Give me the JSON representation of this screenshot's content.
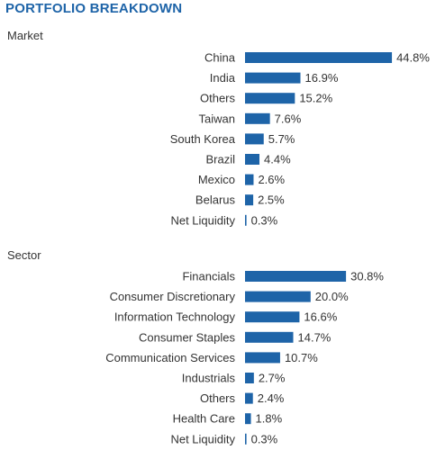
{
  "title": "PORTFOLIO BREAKDOWN",
  "colors": {
    "title": "#1e64a8",
    "bar": "#1e64a8",
    "text": "#333333"
  },
  "chart_data": [
    {
      "type": "bar",
      "orientation": "horizontal",
      "title": "Market",
      "unit": "%",
      "categories": [
        "China",
        "India",
        "Others",
        "Taiwan",
        "South Korea",
        "Brazil",
        "Mexico",
        "Belarus",
        "Net Liquidity"
      ],
      "values": [
        44.8,
        16.9,
        15.2,
        7.6,
        5.7,
        4.4,
        2.6,
        2.5,
        0.3
      ],
      "labels": [
        "44.8%",
        "16.9%",
        "15.2%",
        "7.6%",
        "5.7%",
        "4.4%",
        "2.6%",
        "2.5%",
        "0.3%"
      ]
    },
    {
      "type": "bar",
      "orientation": "horizontal",
      "title": "Sector",
      "unit": "%",
      "categories": [
        "Financials",
        "Consumer Discretionary",
        "Information Technology",
        "Consumer Staples",
        "Communication Services",
        "Industrials",
        "Others",
        "Health Care",
        "Net Liquidity"
      ],
      "values": [
        30.8,
        20.0,
        16.6,
        14.7,
        10.7,
        2.7,
        2.4,
        1.8,
        0.3
      ],
      "labels": [
        "30.8%",
        "20.0%",
        "16.6%",
        "14.7%",
        "10.7%",
        "2.7%",
        "2.4%",
        "1.8%",
        "0.3%"
      ]
    }
  ]
}
